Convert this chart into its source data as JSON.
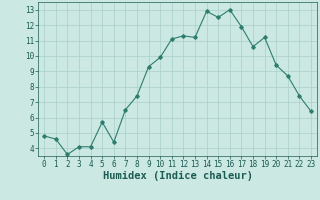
{
  "xlabel": "Humidex (Indice chaleur)",
  "x": [
    0,
    1,
    2,
    3,
    4,
    5,
    6,
    7,
    8,
    9,
    10,
    11,
    12,
    13,
    14,
    15,
    16,
    17,
    18,
    19,
    20,
    21,
    22,
    23
  ],
  "y": [
    4.8,
    4.6,
    3.6,
    4.1,
    4.1,
    5.7,
    4.4,
    6.5,
    7.4,
    9.3,
    9.9,
    11.1,
    11.3,
    11.2,
    12.9,
    12.5,
    13.0,
    11.9,
    10.6,
    11.2,
    9.4,
    8.7,
    7.4,
    6.4
  ],
  "line_color": "#2d7d6e",
  "marker": "D",
  "marker_size": 1.8,
  "line_width": 0.8,
  "bg_color": "#cce8e2",
  "grid_color": "#aacfca",
  "ylim": [
    3.5,
    13.5
  ],
  "yticks": [
    4,
    5,
    6,
    7,
    8,
    9,
    10,
    11,
    12,
    13
  ],
  "xticks": [
    0,
    1,
    2,
    3,
    4,
    5,
    6,
    7,
    8,
    9,
    10,
    11,
    12,
    13,
    14,
    15,
    16,
    17,
    18,
    19,
    20,
    21,
    22,
    23
  ],
  "tick_label_fontsize": 5.5,
  "xlabel_fontsize": 7.5,
  "axis_label_color": "#1a5c52"
}
